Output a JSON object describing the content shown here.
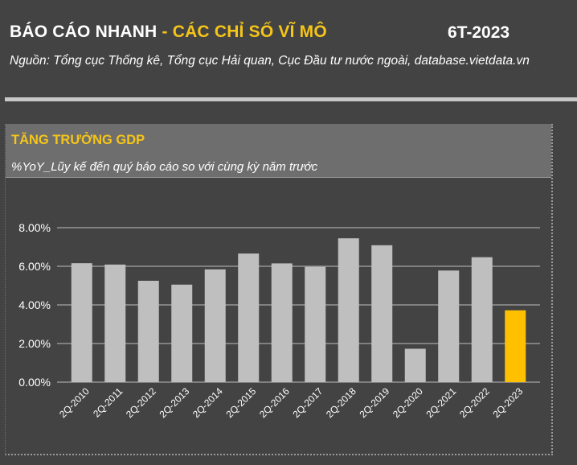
{
  "header": {
    "title_main": "BÁO CÁO NHANH",
    "title_accent": " - CÁC CHỈ SỐ VĨ MÔ",
    "period": "6T-2023",
    "source": "Nguồn: Tổng cục Thống kê, Tổng cục Hải quan, Cục Đầu tư nước ngoài, database.vietdata.vn"
  },
  "panel": {
    "title": "TĂNG TRƯỞNG GDP",
    "subtitle": "%YoY_Lũy kế đến quý báo cáo so với cùng kỳ năm trước"
  },
  "colors": {
    "background": "#434343",
    "bar": "#bfbfbf",
    "highlight_bar": "#ffc000",
    "accent_text": "#f5c518",
    "grid": "#bdbdbd"
  },
  "chart_data": {
    "type": "bar",
    "categories": [
      "2Q-2010",
      "2Q-2011",
      "2Q-2012",
      "2Q-2013",
      "2Q-2014",
      "2Q-2015",
      "2Q-2016",
      "2Q-2017",
      "2Q-2018",
      "2Q-2019",
      "2Q-2020",
      "2Q-2021",
      "2Q-2022",
      "2Q-2023"
    ],
    "values": [
      6.16,
      6.09,
      5.25,
      5.05,
      5.84,
      6.66,
      6.15,
      5.97,
      7.45,
      7.09,
      1.73,
      5.78,
      6.47,
      3.72
    ],
    "highlight_index": 13,
    "yticks": [
      0,
      2,
      4,
      6,
      8
    ],
    "ytick_labels": [
      "0.00%",
      "2.00%",
      "4.00%",
      "6.00%",
      "8.00%"
    ],
    "ylim": [
      0,
      8
    ],
    "grid": true,
    "title": "TĂNG TRƯỞNG GDP",
    "xlabel": "",
    "ylabel": ""
  }
}
